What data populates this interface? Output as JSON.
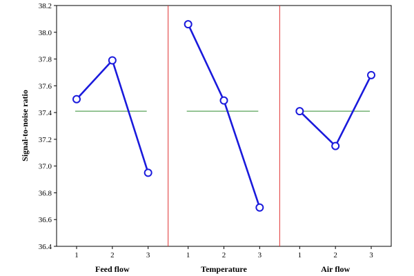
{
  "chart_data": {
    "type": "line",
    "ylabel": "Signal-to-noise ratio",
    "ylim": [
      36.4,
      38.2
    ],
    "yticks": [
      36.4,
      36.6,
      36.8,
      37.0,
      37.2,
      37.4,
      37.6,
      37.8,
      38.0,
      38.2
    ],
    "grid": false,
    "series_color": "#1a1adc",
    "mean_line_color": "#2e8b2e",
    "divider_color": "#e03030",
    "overall_mean": 37.41,
    "groups": [
      {
        "name": "Feed flow",
        "levels": [
          "1",
          "2",
          "3"
        ],
        "values": [
          37.5,
          37.79,
          36.95
        ]
      },
      {
        "name": "Temperature",
        "levels": [
          "1",
          "2",
          "3"
        ],
        "values": [
          38.06,
          37.49,
          36.69
        ]
      },
      {
        "name": "Air flow",
        "levels": [
          "1",
          "2",
          "3"
        ],
        "values": [
          37.41,
          37.15,
          37.68
        ]
      }
    ]
  }
}
